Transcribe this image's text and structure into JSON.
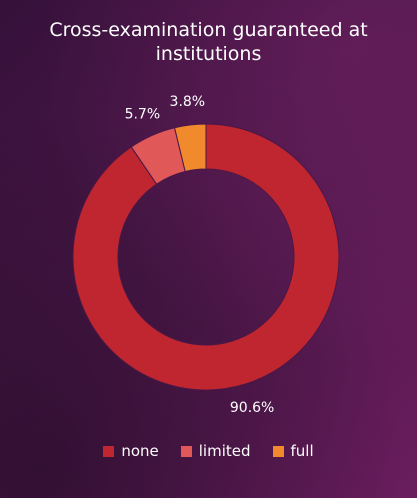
{
  "chart_data": {
    "type": "pie",
    "variant": "donut",
    "title": "Cross-examination guaranteed at institutions",
    "categories": [
      "none",
      "limited",
      "full"
    ],
    "values": [
      90.6,
      5.7,
      3.8
    ],
    "labels": [
      "90.6%",
      "5.7%",
      "3.8%"
    ],
    "colors": [
      "#c0262f",
      "#e05858",
      "#f08a2c"
    ],
    "legend_position": "bottom"
  }
}
